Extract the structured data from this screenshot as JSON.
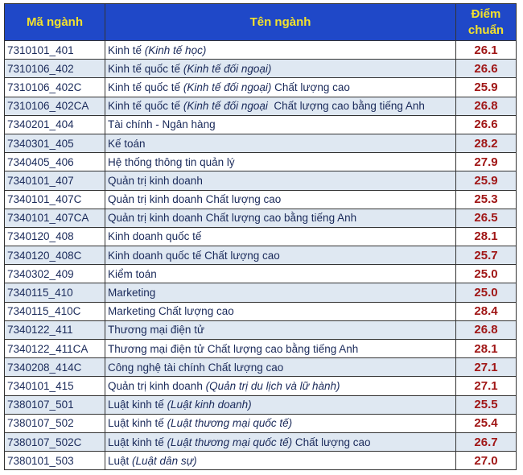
{
  "headers": {
    "code": "Mã ngành",
    "name": "Tên ngành",
    "score": "Điểm chuẩn"
  },
  "colors": {
    "header_bg": "#1f48c8",
    "header_text": "#f3e22c",
    "score_text": "#a01616",
    "alt_row": "#dfe8f2"
  },
  "rows": [
    {
      "code": "7310101_401",
      "name": [
        {
          "t": "Kinh tế "
        },
        {
          "t": "(Kinh tế học)",
          "i": true
        }
      ],
      "score": "26.1"
    },
    {
      "code": "7310106_402",
      "name": [
        {
          "t": "Kinh tế quốc tế "
        },
        {
          "t": "(Kinh tế đối ngoại)",
          "i": true
        }
      ],
      "score": "26.6"
    },
    {
      "code": "7310106_402C",
      "name": [
        {
          "t": "Kinh tế quốc tế "
        },
        {
          "t": "(Kinh tế đối ngoại)",
          "i": true
        },
        {
          "t": " Chất lượng cao"
        }
      ],
      "score": "25.9"
    },
    {
      "code": "7310106_402CA",
      "name": [
        {
          "t": "Kinh tế quốc tế "
        },
        {
          "t": "(Kinh tế đối ngoại",
          "i": true
        },
        {
          "t": "  Chất lượng cao bằng tiếng Anh"
        }
      ],
      "score": "26.8"
    },
    {
      "code": "7340201_404",
      "name": [
        {
          "t": "Tài chính - Ngân hàng"
        }
      ],
      "score": "26.6"
    },
    {
      "code": "7340301_405",
      "name": [
        {
          "t": "Kế toán"
        }
      ],
      "score": "28.2"
    },
    {
      "code": "7340405_406",
      "name": [
        {
          "t": "Hệ thống thông tin quản lý"
        }
      ],
      "score": "27.9"
    },
    {
      "code": "7340101_407",
      "name": [
        {
          "t": "Quản trị kinh doanh"
        }
      ],
      "score": "25.9"
    },
    {
      "code": "7340101_407C",
      "name": [
        {
          "t": "Quản trị kinh doanh Chất lượng cao"
        }
      ],
      "score": "25.3"
    },
    {
      "code": "7340101_407CA",
      "name": [
        {
          "t": "Quản trị kinh doanh Chất lượng cao bằng tiếng Anh"
        }
      ],
      "score": "26.5"
    },
    {
      "code": "7340120_408",
      "name": [
        {
          "t": "Kinh doanh quốc tế"
        }
      ],
      "score": "28.1"
    },
    {
      "code": "7340120_408C",
      "name": [
        {
          "t": "Kinh doanh quốc tế Chất lượng cao"
        }
      ],
      "score": "25.7"
    },
    {
      "code": "7340302_409",
      "name": [
        {
          "t": "Kiểm toán"
        }
      ],
      "score": "25.0"
    },
    {
      "code": "7340115_410",
      "name": [
        {
          "t": "Marketing"
        }
      ],
      "score": "25.0"
    },
    {
      "code": "7340115_410C",
      "name": [
        {
          "t": "Marketing Chất lượng cao"
        }
      ],
      "score": "28.4"
    },
    {
      "code": "7340122_411",
      "name": [
        {
          "t": "Thương mại điện tử"
        }
      ],
      "score": "26.8"
    },
    {
      "code": "7340122_411CA",
      "name": [
        {
          "t": "Thương mại điện tử Chất lượng cao bằng tiếng Anh"
        }
      ],
      "score": "28.1"
    },
    {
      "code": "7340208_414C",
      "name": [
        {
          "t": "Công nghệ tài chính Chất lượng cao"
        }
      ],
      "score": "27.1"
    },
    {
      "code": "7340101_415",
      "name": [
        {
          "t": "Quản trị kinh doanh "
        },
        {
          "t": "(Quản trị du lịch và lữ hành)",
          "i": true
        }
      ],
      "score": "27.1"
    },
    {
      "code": "7380107_501",
      "name": [
        {
          "t": "Luật kinh tế "
        },
        {
          "t": "(Luật kinh doanh)",
          "i": true
        }
      ],
      "score": "25.5"
    },
    {
      "code": "7380107_502",
      "name": [
        {
          "t": "Luật kinh tế "
        },
        {
          "t": "(Luật thương mại quốc tế)",
          "i": true
        }
      ],
      "score": "25.4"
    },
    {
      "code": "7380107_502C",
      "name": [
        {
          "t": "Luật kinh tế "
        },
        {
          "t": "(Luật thương mại quốc tế)",
          "i": true
        },
        {
          "t": " Chất lượng cao"
        }
      ],
      "score": "26.7"
    },
    {
      "code": "7380101_503",
      "name": [
        {
          "t": "Luật "
        },
        {
          "t": "(Luật dân sự)",
          "i": true
        }
      ],
      "score": "27.0"
    }
  ]
}
